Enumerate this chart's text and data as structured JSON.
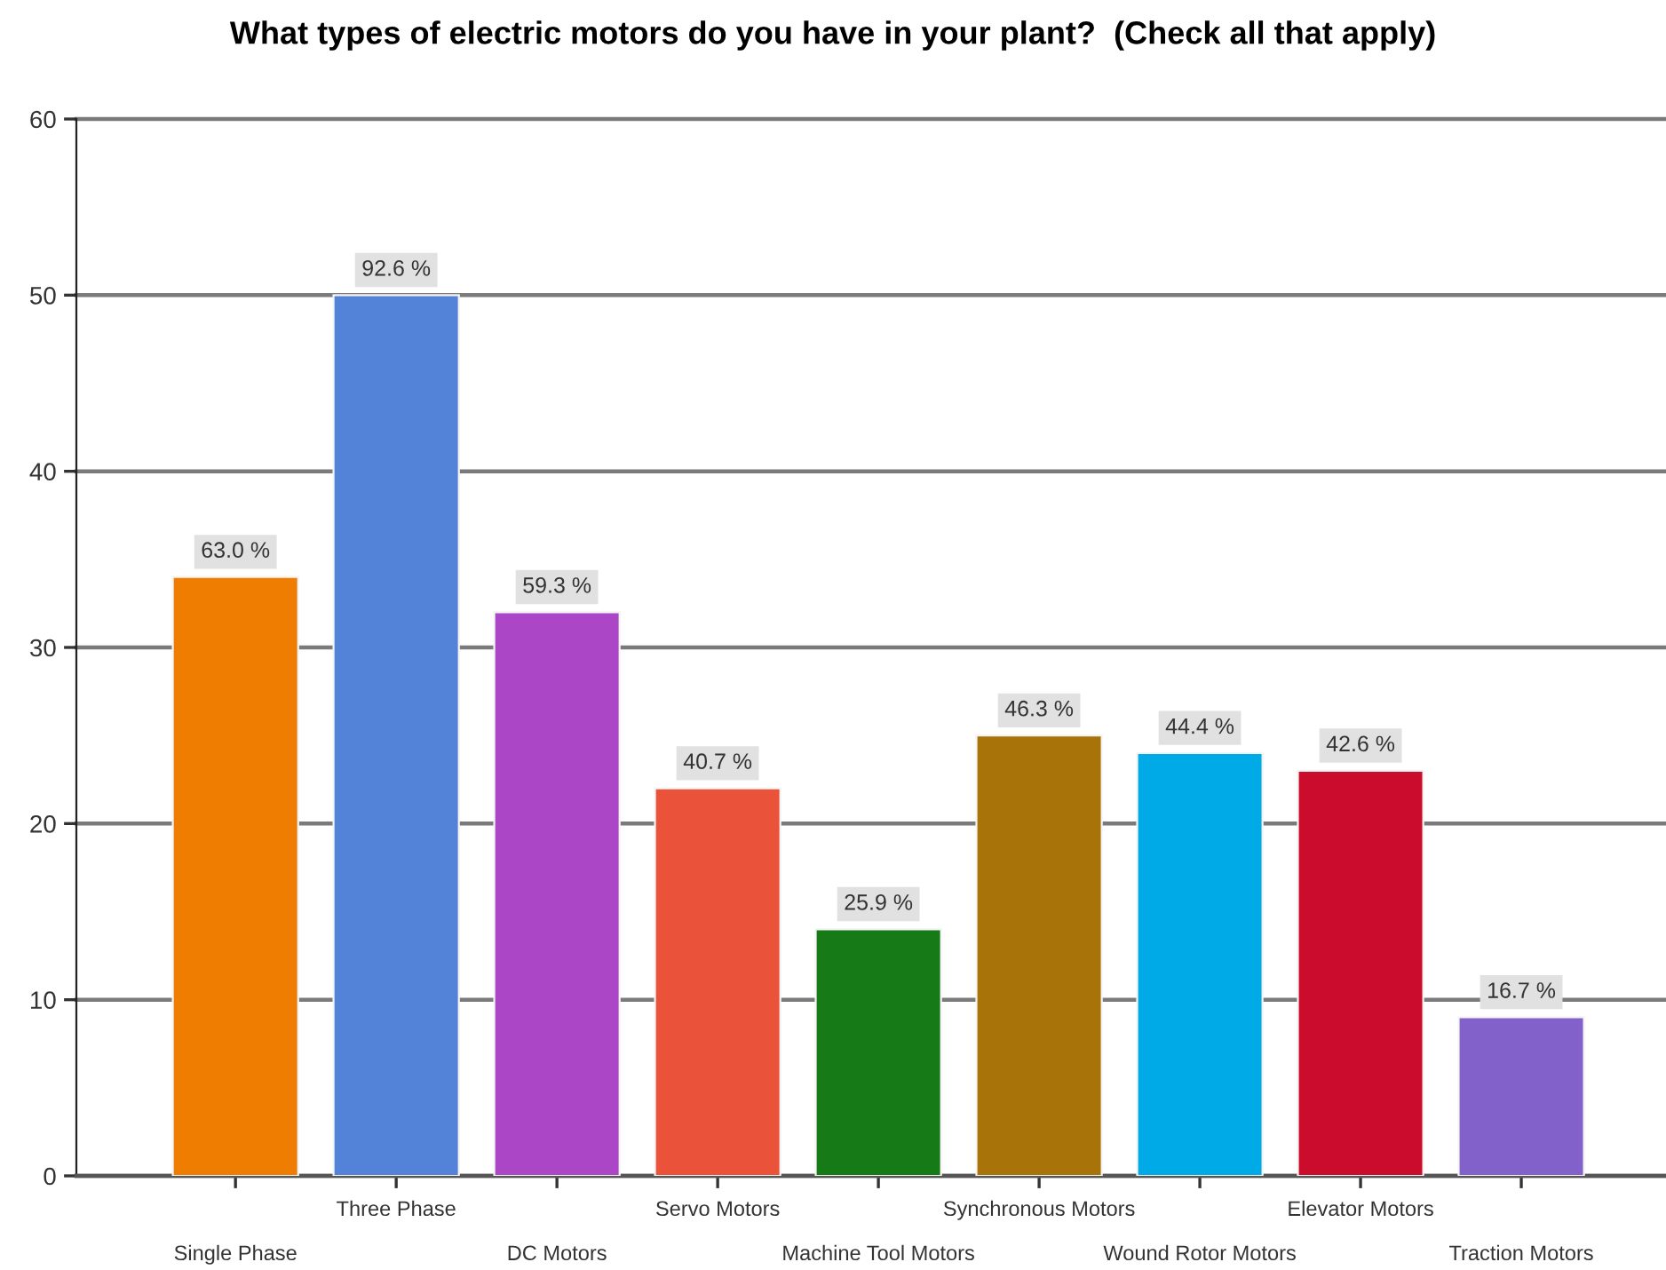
{
  "chart_data": {
    "type": "bar",
    "title": "What types of electric motors do you have in your plant?  (Check all that apply)",
    "categories": [
      "Single Phase",
      "Three Phase",
      "DC Motors",
      "Servo Motors",
      "Machine Tool Motors",
      "Synchronous Motors",
      "Wound Rotor Motors",
      "Elevator Motors",
      "Traction Motors"
    ],
    "values": [
      34,
      50,
      32,
      22,
      14,
      25,
      24,
      23,
      9
    ],
    "colors": [
      "#ee7d02",
      "#5283d9",
      "#ab47c6",
      "#ea5239",
      "#167b16",
      "#a87409",
      "#00aae6",
      "#cb0c2c",
      "#8361cb"
    ],
    "annotations": [
      {
        "text": "63.0 %",
        "x": "Single Phase",
        "y": 34
      },
      {
        "text": "92.6 %",
        "x": "Three Phase",
        "y": 50
      },
      {
        "text": "59.3 %",
        "x": "DC Motors",
        "y": 32
      },
      {
        "text": "40.7 %",
        "x": "Servo Motors",
        "y": 22
      },
      {
        "text": "25.9 %",
        "x": "Machine Tool Motors",
        "y": 14
      },
      {
        "text": "46.3 %",
        "x": "Synchronous Motors",
        "y": 25
      },
      {
        "text": "44.4 %",
        "x": "Wound Rotor Motors",
        "y": 24
      },
      {
        "text": "42.6 %",
        "x": "Elevator Motors",
        "y": 23
      },
      {
        "text": "16.7 %",
        "x": "Traction Motors",
        "y": 9
      }
    ],
    "ylim": [
      0,
      60
    ],
    "yticks": [
      0,
      10,
      20,
      30,
      40,
      50,
      60
    ],
    "grid": "y"
  }
}
